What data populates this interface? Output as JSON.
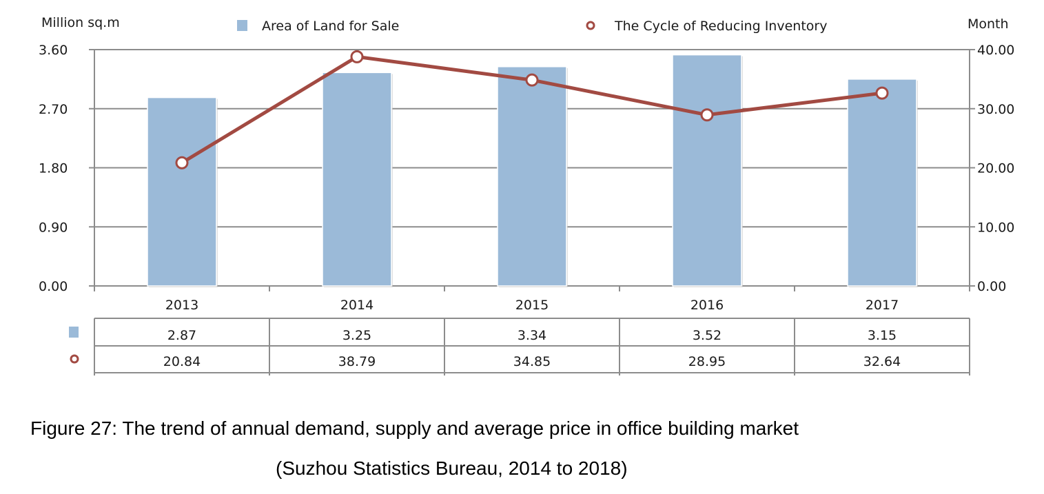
{
  "chart_data": {
    "type": "bar+line",
    "categories": [
      "2013",
      "2014",
      "2015",
      "2016",
      "2017"
    ],
    "series": [
      {
        "name": "Area of Land for Sale",
        "type": "bar",
        "axis": "left",
        "color": "#9bbad8",
        "values": [
          2.87,
          3.25,
          3.34,
          3.52,
          3.15
        ]
      },
      {
        "name": "The Cycle of Reducing Inventory",
        "type": "line",
        "axis": "right",
        "color": "#a24a42",
        "values": [
          20.84,
          38.79,
          34.85,
          28.95,
          32.64
        ]
      }
    ],
    "left_axis": {
      "label": "Million sq.m",
      "range": [
        0,
        3.6
      ],
      "ticks": [
        "0.00",
        "0.90",
        "1.80",
        "2.70",
        "3.60"
      ]
    },
    "right_axis": {
      "label": "Month",
      "range": [
        0,
        40
      ],
      "ticks": [
        "0.00",
        "10.00",
        "20.00",
        "30.00",
        "40.00"
      ]
    },
    "grid": true,
    "legend": "top",
    "data_table": {
      "rows": [
        {
          "series": "Area of Land for Sale",
          "values": [
            "2.87",
            "3.25",
            "3.34",
            "3.52",
            "3.15"
          ]
        },
        {
          "series": "The Cycle of Reducing Inventory",
          "values": [
            "20.84",
            "38.79",
            "34.85",
            "28.95",
            "32.64"
          ]
        }
      ]
    }
  },
  "caption": {
    "line1": "Figure 27: The trend of annual demand, supply and average price in office building market",
    "line2": "(Suzhou Statistics Bureau, 2014 to 2018)"
  }
}
